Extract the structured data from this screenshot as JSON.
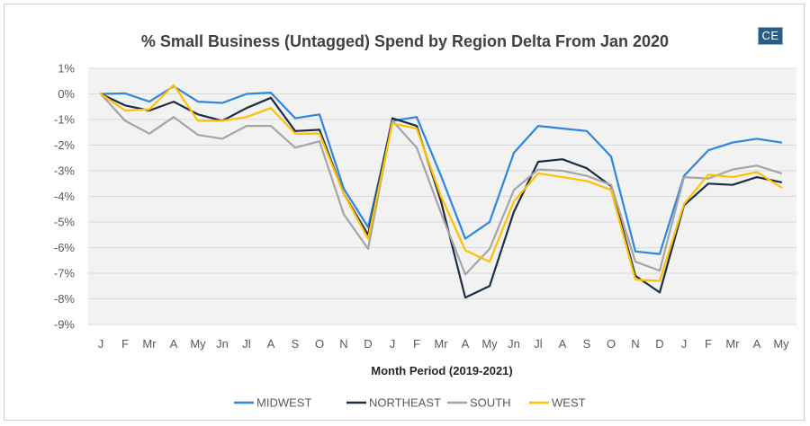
{
  "badge": "CE",
  "chart_data": {
    "type": "line",
    "title": "% Small Business (Untagged) Spend by Region Delta From Jan 2020",
    "xlabel": "Month Period (2019-2021)",
    "ylabel": "",
    "ylim": [
      -9,
      1
    ],
    "yticks": [
      1,
      0,
      -1,
      -2,
      -3,
      -4,
      -5,
      -6,
      -7,
      -8,
      -9
    ],
    "ytick_labels": [
      "1%",
      "0%",
      "-1%",
      "-2%",
      "-3%",
      "-4%",
      "-5%",
      "-6%",
      "-7%",
      "-8%",
      "-9%"
    ],
    "categories": [
      "J",
      "F",
      "Mr",
      "A",
      "My",
      "Jn",
      "Jl",
      "A",
      "S",
      "O",
      "N",
      "D",
      "J",
      "F",
      "Mr",
      "A",
      "My",
      "Jn",
      "Jl",
      "A",
      "S",
      "O",
      "N",
      "D",
      "J",
      "F",
      "Mr",
      "A",
      "My"
    ],
    "legend_position": "bottom",
    "grid": "horizontal",
    "series": [
      {
        "name": "MIDWEST",
        "color": "#2e86de",
        "values": [
          0,
          0.02,
          -0.3,
          0.3,
          -0.3,
          -0.35,
          0,
          0.05,
          -0.95,
          -0.8,
          -3.7,
          -5.2,
          -1.05,
          -0.9,
          -3.2,
          -5.65,
          -5.0,
          -2.3,
          -1.25,
          -1.35,
          -1.45,
          -2.45,
          -6.15,
          -6.25,
          -3.2,
          -2.2,
          -1.9,
          -1.75,
          -1.9
        ]
      },
      {
        "name": "NORTHEAST",
        "color": "#1c2e45",
        "values": [
          0,
          -0.45,
          -0.65,
          -0.3,
          -0.8,
          -1.05,
          -0.55,
          -0.15,
          -1.45,
          -1.4,
          -3.9,
          -5.5,
          -0.95,
          -1.25,
          -4.2,
          -7.95,
          -7.5,
          -4.6,
          -2.65,
          -2.55,
          -2.9,
          -3.6,
          -7.1,
          -7.75,
          -4.35,
          -3.5,
          -3.55,
          -3.25,
          -3.45
        ]
      },
      {
        "name": "SOUTH",
        "color": "#a5a5a5",
        "values": [
          0,
          -1.05,
          -1.55,
          -0.9,
          -1.6,
          -1.75,
          -1.25,
          -1.25,
          -2.1,
          -1.85,
          -4.7,
          -6.05,
          -1.05,
          -2.1,
          -4.65,
          -7.05,
          -6.05,
          -3.75,
          -2.95,
          -3.0,
          -3.2,
          -3.55,
          -6.55,
          -6.9,
          -3.25,
          -3.3,
          -2.95,
          -2.8,
          -3.1
        ]
      },
      {
        "name": "WEST",
        "color": "#ffc000",
        "values": [
          0,
          -0.65,
          -0.6,
          0.35,
          -1.05,
          -1.05,
          -0.9,
          -0.55,
          -1.55,
          -1.55,
          -3.9,
          -5.65,
          -1.15,
          -1.35,
          -4.0,
          -6.1,
          -6.55,
          -4.2,
          -3.1,
          -3.25,
          -3.4,
          -3.75,
          -7.25,
          -7.3,
          -4.3,
          -3.15,
          -3.25,
          -3.05,
          -3.65
        ]
      }
    ]
  }
}
